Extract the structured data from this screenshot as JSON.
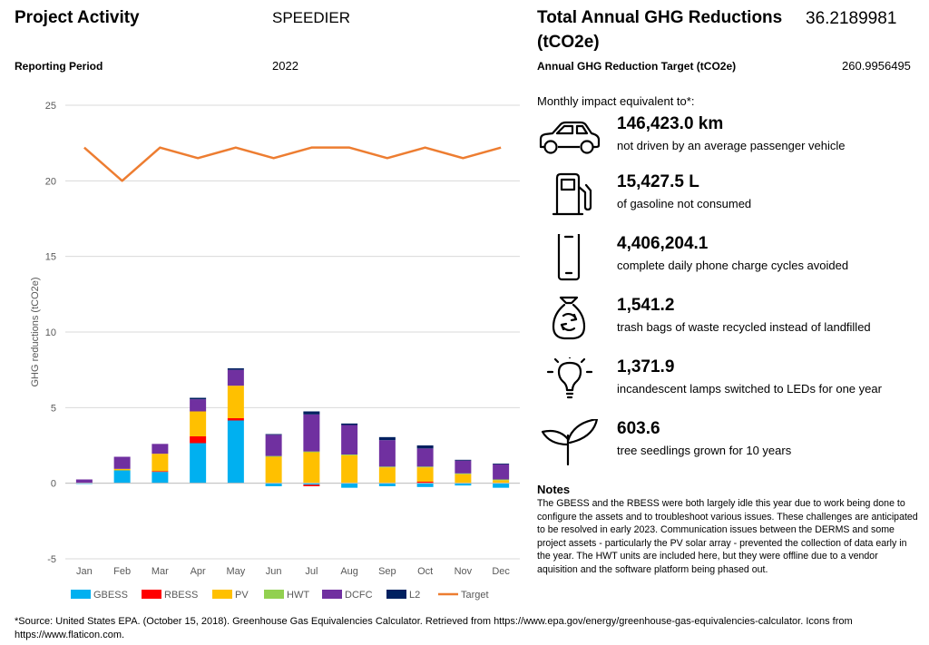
{
  "header": {
    "project_activity_label": "Project Activity",
    "project_activity_value": "SPEEDIER",
    "reporting_period_label": "Reporting Period",
    "reporting_period_value": "2022",
    "total_label_line1": "Total Annual GHG Reductions",
    "total_label_line2": "(tCO2e)",
    "total_value": "36.2189981",
    "target_label": "Annual GHG Reduction Target (tCO2e)",
    "target_value": "260.9956495"
  },
  "equivalents": {
    "intro": "Monthly impact equivalent to*:",
    "items": [
      {
        "icon": "car-icon",
        "value": "146,423.0 km",
        "desc": "not driven by an average passenger vehicle"
      },
      {
        "icon": "fuel-pump-icon",
        "value": "15,427.5 L",
        "desc": "of gasoline not consumed"
      },
      {
        "icon": "smartphone-icon",
        "value": "4,406,204.1",
        "desc": "complete daily phone charge cycles avoided"
      },
      {
        "icon": "recycle-bag-icon",
        "value": "1,541.2",
        "desc": "trash bags of waste recycled instead of landfilled"
      },
      {
        "icon": "lightbulb-icon",
        "value": "1,371.9",
        "desc": "incandescent lamps switched to LEDs for one year"
      },
      {
        "icon": "seedling-icon",
        "value": "603.6",
        "desc": "tree seedlings grown for 10 years"
      }
    ]
  },
  "notes": {
    "title": "Notes",
    "text": "The GBESS and the RBESS were both largely idle this year due to work being done to configure the assets and to troubleshoot various issues. These challenges are anticipated to be resolved in early 2023. Communication issues between the DERMS and some project assets - particularly the PV solar array - prevented the collection of data early in the year. The HWT units are included here, but they were offline due to a vendor aquisition and the software platform being phased out."
  },
  "footer": {
    "source": "*Source: United States EPA. (October 15, 2018). Greenhouse Gas Equivalencies Calculator. Retrieved from https://www.epa.gov/energy/greenhouse-gas-equivalencies-calculator. Icons from https://www.flaticon.com."
  },
  "chart_data": {
    "type": "bar",
    "stacked": true,
    "categories": [
      "Jan",
      "Feb",
      "Mar",
      "Apr",
      "May",
      "Jun",
      "Jul",
      "Aug",
      "Sep",
      "Oct",
      "Nov",
      "Dec"
    ],
    "ylabel": "GHG reductions (tCO2e)",
    "ylim": [
      -5,
      25
    ],
    "yticks": [
      -5,
      0,
      5,
      10,
      15,
      20,
      25
    ],
    "grid": true,
    "legend": "bottom",
    "series": [
      {
        "name": "GBESS",
        "color": "#00B0F0",
        "values": [
          -0.05,
          0.85,
          0.75,
          2.65,
          4.15,
          -0.2,
          -0.1,
          -0.3,
          -0.2,
          -0.25,
          -0.15,
          -0.3
        ]
      },
      {
        "name": "RBESS",
        "color": "#FF0000",
        "values": [
          0,
          0,
          0.05,
          0.45,
          0.15,
          0,
          -0.1,
          0,
          0,
          0.1,
          0,
          0
        ]
      },
      {
        "name": "PV",
        "color": "#FFC000",
        "values": [
          0,
          0.1,
          1.15,
          1.65,
          2.15,
          1.75,
          2.05,
          1.85,
          1.05,
          0.95,
          0.6,
          0.2
        ]
      },
      {
        "name": "HWT",
        "color": "#92D050",
        "values": [
          0,
          0,
          0,
          0,
          0,
          0.05,
          0.05,
          0.05,
          0.05,
          0.05,
          0.05,
          0.05
        ]
      },
      {
        "name": "DCFC",
        "color": "#7030A0",
        "values": [
          0.25,
          0.8,
          0.65,
          0.8,
          1.05,
          1.4,
          2.45,
          1.95,
          1.75,
          1.2,
          0.85,
          1.0
        ]
      },
      {
        "name": "L2",
        "color": "#002060",
        "values": [
          0,
          0,
          0,
          0.1,
          0.1,
          0.05,
          0.2,
          0.1,
          0.2,
          0.2,
          0.05,
          0.05
        ]
      },
      {
        "name": "Target",
        "type": "line",
        "color": "#ED7D31",
        "values": [
          22.2,
          20.0,
          22.2,
          21.5,
          22.2,
          21.5,
          22.2,
          22.2,
          21.5,
          22.2,
          21.5,
          22.2
        ]
      }
    ]
  }
}
